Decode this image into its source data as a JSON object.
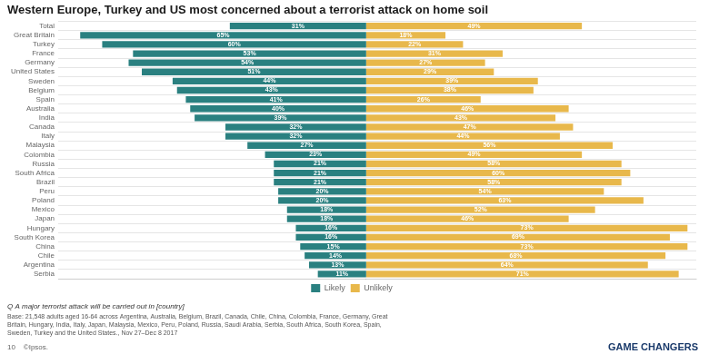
{
  "chart_data": {
    "type": "bar",
    "orientation": "horizontal",
    "title": "Western Europe, Turkey and US most concerned about a terrorist attack on home soil",
    "categories": [
      "Total",
      "Great Britain",
      "Turkey",
      "France",
      "Germany",
      "United States",
      "Sweden",
      "Belgium",
      "Spain",
      "Australia",
      "India",
      "Canada",
      "Italy",
      "Malaysia",
      "Colombia",
      "Russia",
      "South Africa",
      "Brazil",
      "Peru",
      "Poland",
      "Mexico",
      "Japan",
      "Hungary",
      "South Korea",
      "China",
      "Chile",
      "Argentina",
      "Serbia"
    ],
    "series": [
      {
        "name": "Likely",
        "color": "#2a8080",
        "values": [
          31,
          65,
          60,
          53,
          54,
          51,
          44,
          43,
          41,
          40,
          39,
          32,
          32,
          27,
          23,
          21,
          21,
          21,
          20,
          20,
          18,
          18,
          16,
          16,
          15,
          14,
          13,
          11
        ],
        "value_labels": [
          "31%",
          "65%",
          "60%",
          "53%",
          "54%",
          "51%",
          "44%",
          "43%",
          "41%",
          "40%",
          "39%",
          "32%",
          "32%",
          "27%",
          "23%",
          "21%",
          "21%",
          "21%",
          "20%",
          "20%",
          "18%",
          "18%",
          "16%",
          "16%",
          "15%",
          "14%",
          "13%",
          "11%"
        ],
        "xlim": [
          70,
          0
        ]
      },
      {
        "name": "Unlikely",
        "color": "#e8b84b",
        "values": [
          49,
          18,
          22,
          31,
          27,
          29,
          39,
          38,
          26,
          46,
          43,
          47,
          44,
          56,
          49,
          58,
          60,
          58,
          54,
          63,
          52,
          46,
          73,
          69,
          73,
          68,
          64,
          71
        ],
        "value_labels": [
          "49%",
          "18%",
          "22%",
          "31%",
          "27%",
          "29%",
          "39%",
          "38%",
          "26%",
          "46%",
          "43%",
          "47%",
          "44%",
          "56%",
          "49%",
          "58%",
          "60%",
          "58%",
          "54%",
          "63%",
          "52%",
          "46%",
          "73%",
          "69%",
          "73%",
          "68%",
          "64%",
          "71%"
        ],
        "xlim": [
          0,
          75
        ]
      }
    ],
    "data_labels": true,
    "tick_labels": "y",
    "grid": true,
    "legend": "bottom",
    "annotations": [
      "Q A major terrorist attack will be carried out in [country]",
      "Base: 21,548 adults aged 16-64 across Argentina, Australia, Belgium, Brazil, Canada, Chile, China, Colombia, France, Germany, Great\nBritain, Hungary, India, Italy, Japan, Malaysia, Mexico, Peru, Poland, Russia, Saudi Arabia, Serbia, South Africa, South Korea, Spain,\nSweden, Turkey and the United States., Nov 27–Dec 8 2017",
      "10    ©Ipsos.",
      "GAME CHANGERS"
    ]
  }
}
